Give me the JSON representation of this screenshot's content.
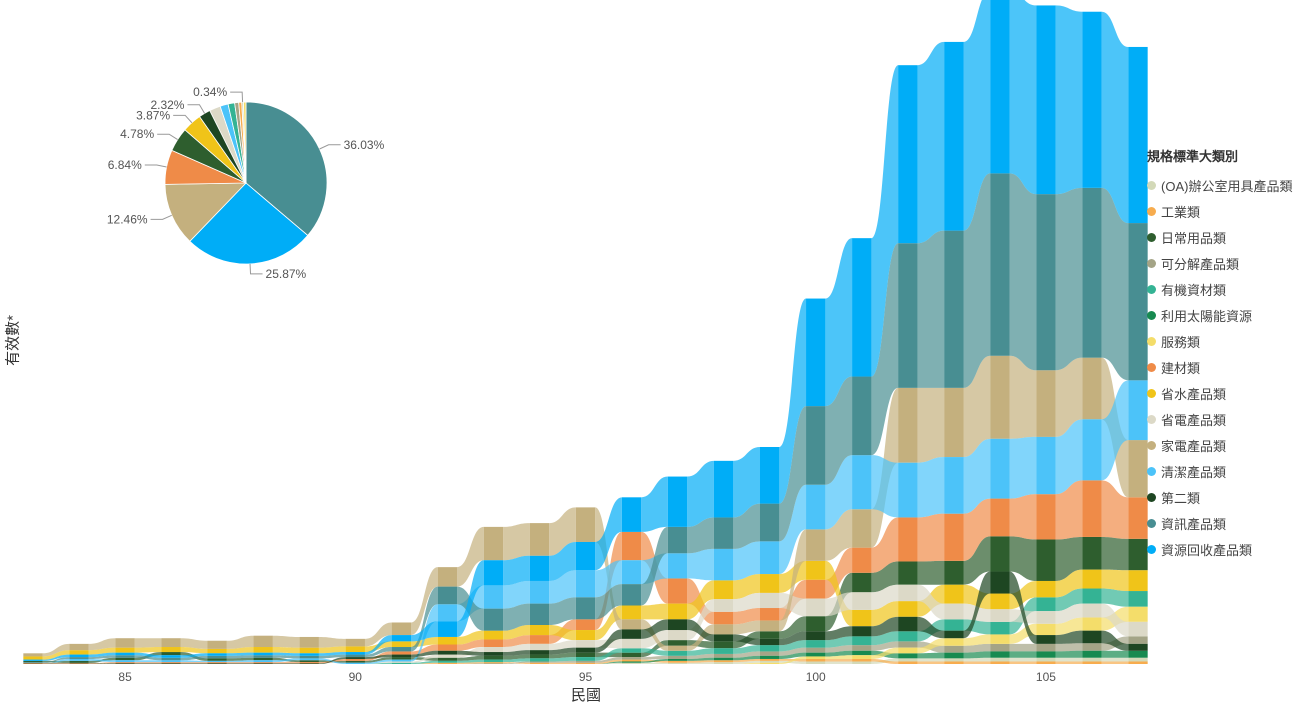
{
  "chart_data": [
    {
      "type": "ribbon",
      "xlabel": "民國",
      "ylabel": "有效數*",
      "x_ticks": [
        85,
        90,
        95,
        100,
        105
      ],
      "xlim": [
        83,
        107
      ],
      "ylim": [
        0,
        1.0
      ],
      "legend_title": "規格標準大類別",
      "legend_position": "right",
      "categories": [
        "(OA)辦公室用具產品類",
        "工業類",
        "日常用品類",
        "可分解產品類",
        "有機資材類",
        "利用太陽能資源",
        "服務類",
        "建材類",
        "省水產品類",
        "省電產品類",
        "家電產品類",
        "清潔產品類",
        "第二類",
        "資訊產品類",
        "資源回收產品類"
      ],
      "colors": [
        "#d3d9b8",
        "#f7ac4e",
        "#2e5e2e",
        "#a4a486",
        "#34b394",
        "#178a50",
        "#f4dd6a",
        "#ef8b48",
        "#f0c419",
        "#dcd9c7",
        "#c4b07e",
        "#4cc3f9",
        "#1e4622",
        "#488e92",
        "#00adf7"
      ],
      "years": [
        83,
        84,
        85,
        86,
        87,
        88,
        89,
        90,
        91,
        92,
        93,
        94,
        95,
        96,
        97,
        98,
        99,
        100,
        101,
        102,
        103,
        104,
        105,
        106,
        107
      ],
      "values": {
        "(OA)辦公室用具產品類": [
          0,
          0,
          0,
          0,
          0,
          0,
          0,
          0,
          0,
          0,
          0,
          0,
          0,
          0.002,
          0.002,
          0.003,
          0.003,
          0.004,
          0.004,
          0.005,
          0.005,
          0.006,
          0.006,
          0.006,
          0.006
        ],
        "工業類": [
          0,
          0,
          0,
          0,
          0,
          0,
          0,
          0,
          0,
          0.002,
          0.002,
          0.002,
          0.002,
          0.003,
          0.003,
          0.003,
          0.003,
          0.004,
          0.004,
          0.004,
          0.004,
          0.004,
          0.004,
          0.004,
          0.004
        ],
        "日常用品類": [
          0.002,
          0.003,
          0.004,
          0.005,
          0.004,
          0.004,
          0.003,
          0.003,
          0.004,
          0.005,
          0.006,
          0.006,
          0.007,
          0.007,
          0.009,
          0.011,
          0.012,
          0.024,
          0.031,
          0.037,
          0.038,
          0.056,
          0.066,
          0.052,
          0.05
        ],
        "可分解產品類": [
          0,
          0,
          0,
          0,
          0,
          0,
          0,
          0,
          0,
          0,
          0.001,
          0.002,
          0.003,
          0.004,
          0.005,
          0.006,
          0.007,
          0.008,
          0.009,
          0.01,
          0.011,
          0.012,
          0.012,
          0.012,
          0.012
        ],
        "有機資材類": [
          0,
          0,
          0,
          0,
          0,
          0,
          0,
          0,
          0.002,
          0.003,
          0.004,
          0.005,
          0.006,
          0.007,
          0.008,
          0.009,
          0.01,
          0.012,
          0.014,
          0.016,
          0.018,
          0.02,
          0.022,
          0.024,
          0.025
        ],
        "利用太陽能資源": [
          0,
          0,
          0,
          0,
          0,
          0,
          0,
          0,
          0,
          0,
          0,
          0,
          0,
          0.002,
          0.003,
          0.004,
          0.005,
          0.006,
          0.007,
          0.008,
          0.009,
          0.01,
          0.01,
          0.011,
          0.011
        ],
        "服務類": [
          0,
          0,
          0,
          0,
          0,
          0,
          0,
          0,
          0,
          0,
          0,
          0,
          0,
          0,
          0,
          0,
          0.002,
          0.004,
          0.006,
          0.009,
          0.012,
          0.015,
          0.018,
          0.021,
          0.024
        ],
        "建材類": [
          0.001,
          0.001,
          0.002,
          0.002,
          0.002,
          0.002,
          0.002,
          0.003,
          0.005,
          0.01,
          0.012,
          0.014,
          0.017,
          0.045,
          0.04,
          0.02,
          0.02,
          0.03,
          0.04,
          0.07,
          0.075,
          0.06,
          0.072,
          0.09,
          0.066
        ],
        "省水產品類": [
          0.005,
          0.007,
          0.008,
          0.008,
          0.007,
          0.009,
          0.009,
          0.009,
          0.009,
          0.012,
          0.014,
          0.016,
          0.016,
          0.022,
          0.025,
          0.03,
          0.03,
          0.03,
          0.026,
          0.025,
          0.03,
          0.025,
          0.026,
          0.03,
          0.033
        ],
        "省電產品類": [
          0,
          0,
          0,
          0,
          0,
          0,
          0,
          0,
          0.002,
          0.005,
          0.008,
          0.01,
          0.012,
          0.015,
          0.016,
          0.02,
          0.024,
          0.028,
          0.028,
          0.026,
          0.025,
          0.02,
          0.02,
          0.022,
          0.023
        ],
        "家電產品類": [
          0.005,
          0.01,
          0.015,
          0.014,
          0.013,
          0.018,
          0.017,
          0.012,
          0.02,
          0.031,
          0.053,
          0.052,
          0.055,
          0.016,
          0.008,
          0.016,
          0.017,
          0.05,
          0.061,
          0.119,
          0.11,
          0.132,
          0.106,
          0.098,
          0.091
        ],
        "清潔產品類": [
          0,
          0.003,
          0.003,
          0.003,
          0.002,
          0.003,
          0.003,
          0.002,
          0.003,
          0.027,
          0.037,
          0.036,
          0.043,
          0.038,
          0.04,
          0.05,
          0.052,
          0.071,
          0.086,
          0.087,
          0.09,
          0.095,
          0.091,
          0.097,
          0.095
        ],
        "第二類": [
          0.001,
          0.001,
          0.001,
          0.001,
          0.001,
          0.001,
          0.001,
          0.003,
          0.004,
          0.006,
          0.006,
          0.007,
          0.008,
          0.015,
          0.017,
          0.011,
          0.01,
          0.014,
          0.016,
          0.023,
          0.012,
          0.035,
          0.014,
          0.02,
          0.011
        ],
        "資訊產品類": [
          0.001,
          0.003,
          0.004,
          0.004,
          0.004,
          0.004,
          0.004,
          0.004,
          0.007,
          0.028,
          0.035,
          0.034,
          0.035,
          0.034,
          0.042,
          0.05,
          0.06,
          0.125,
          0.125,
          0.23,
          0.25,
          0.29,
          0.28,
          0.27,
          0.25
        ],
        "資源回收產品類": [
          0.002,
          0.004,
          0.004,
          0.004,
          0.004,
          0.004,
          0.004,
          0.004,
          0.01,
          0.025,
          0.04,
          0.04,
          0.045,
          0.055,
          0.08,
          0.09,
          0.09,
          0.171,
          0.22,
          0.283,
          0.3,
          0.29,
          0.3,
          0.28,
          0.28
        ]
      }
    },
    {
      "type": "pie",
      "labels": [
        "資訊產品類",
        "資源回收產品類",
        "家電產品類",
        "建材類",
        "日常用品類",
        "省水產品類",
        "第二類",
        "省電產品類",
        "清潔產品類",
        "有機資材類",
        "可分解產品類",
        "工業類",
        "(OA)辦公室用具產品類",
        "服務類"
      ],
      "values": [
        36.03,
        25.87,
        12.46,
        6.84,
        4.78,
        3.87,
        2.32,
        2.2,
        1.6,
        1.3,
        0.8,
        0.6,
        0.34,
        0.5
      ],
      "colors": [
        "#488e92",
        "#00adf7",
        "#c4b07e",
        "#ef8b48",
        "#2e5e2e",
        "#f0c419",
        "#1e4622",
        "#dcd9c7",
        "#4cc3f9",
        "#34b394",
        "#a4a486",
        "#f7ac4e",
        "#d3d9b8",
        "#f4dd6a"
      ],
      "data_labels": [
        "36.03%",
        "25.87%",
        "12.46%",
        "6.84%",
        "4.78%",
        "3.87%",
        "2.32%",
        "",
        "",
        "",
        "",
        "",
        "0.34%",
        ""
      ]
    }
  ]
}
